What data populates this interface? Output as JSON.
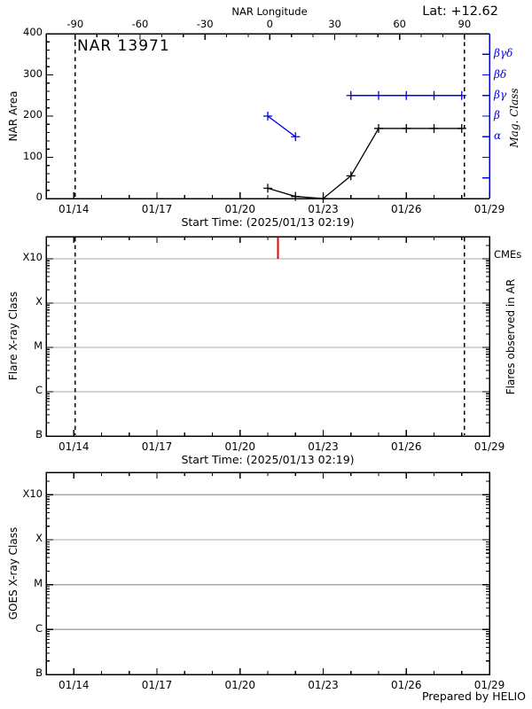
{
  "header": {
    "latitude_label": "Lat: +12.62"
  },
  "footer": {
    "credit": "Prepared by HELIO"
  },
  "colors": {
    "axis": "#000000",
    "mag_class": "#0000dd",
    "cme": "#ee0000",
    "grid_line": "#a8a8a8"
  },
  "chart_data": [
    {
      "type": "line",
      "panel": "nar-area",
      "title": "NAR 13971",
      "xlabel": "Start Time: (2025/01/13 02:19)",
      "x_ticks": [
        {
          "day": 14,
          "label": "01/14"
        },
        {
          "day": 17,
          "label": "01/17"
        },
        {
          "day": 20,
          "label": "01/20"
        },
        {
          "day": 23,
          "label": "01/23"
        },
        {
          "day": 26,
          "label": "01/26"
        },
        {
          "day": 29,
          "label": "01/29"
        }
      ],
      "x_minor_step_days": 1,
      "ylabel": "NAR Area",
      "ylim": [
        0,
        400
      ],
      "y_major_ticks": [
        0,
        100,
        200,
        300,
        400
      ],
      "y_minor_step": 20,
      "top_axis": {
        "label": "NAR Longitude",
        "ticks_deg": [
          -90,
          -60,
          -30,
          0,
          30,
          60,
          90
        ],
        "minor_step_deg": 10,
        "deg_minus90_day": 14.05,
        "deg_plus90_day": 28.1
      },
      "right_axis": {
        "label": "Mag. Class",
        "ticks": [
          {
            "label": "βγδ",
            "area": 350
          },
          {
            "label": "βδ",
            "area": 300
          },
          {
            "label": "βγ",
            "area": 250
          },
          {
            "label": "β",
            "area": 200
          },
          {
            "label": "α",
            "area": 150
          },
          {
            "label": "",
            "area": 100
          },
          {
            "label": "",
            "area": 50
          }
        ]
      },
      "limb_crossing_days": [
        14.05,
        28.1
      ],
      "area_series": {
        "name": "NAR area",
        "points": [
          [
            21,
            25
          ],
          [
            22,
            5
          ],
          [
            23,
            0
          ],
          [
            24,
            55
          ],
          [
            25,
            170
          ],
          [
            26,
            170
          ],
          [
            27,
            170
          ],
          [
            28,
            170
          ]
        ]
      },
      "mag_series": {
        "name": "Magnetic class",
        "segments": [
          [
            [
              21,
              "β"
            ],
            [
              22,
              "α"
            ]
          ],
          [
            [
              24,
              "βγ"
            ],
            [
              25,
              "βγ"
            ],
            [
              26,
              "βγ"
            ],
            [
              27,
              "βγ"
            ],
            [
              28,
              "βγ"
            ]
          ]
        ]
      }
    },
    {
      "type": "scatter",
      "panel": "flare-xray",
      "xlabel": "Start Time: (2025/01/13 02:19)",
      "x_ticks": [
        {
          "day": 14,
          "label": "01/14"
        },
        {
          "day": 17,
          "label": "01/17"
        },
        {
          "day": 20,
          "label": "01/20"
        },
        {
          "day": 23,
          "label": "01/23"
        },
        {
          "day": 26,
          "label": "01/26"
        },
        {
          "day": 29,
          "label": "01/29"
        }
      ],
      "x_minor_step_days": 1,
      "ylabel": "Flare X-ray Class",
      "ylim_log": [
        -7,
        -2.5
      ],
      "y_ticks": [
        {
          "label": "B",
          "log": -7
        },
        {
          "label": "C",
          "log": -6
        },
        {
          "label": "M",
          "log": -5
        },
        {
          "label": "X",
          "log": -4
        },
        {
          "label": "X10",
          "log": -3
        }
      ],
      "grid_levels_log": [
        -6,
        -5,
        -4,
        -3
      ],
      "right_label": "Flares observed in AR",
      "cme_label": "CMEs",
      "cme_event_days": [
        21.37
      ],
      "limb_crossing_days": [
        14.05,
        28.1
      ],
      "flares": []
    },
    {
      "type": "scatter",
      "panel": "goes-xray",
      "x_ticks": [
        {
          "day": 14,
          "label": "01/14"
        },
        {
          "day": 17,
          "label": "01/17"
        },
        {
          "day": 20,
          "label": "01/20"
        },
        {
          "day": 23,
          "label": "01/23"
        },
        {
          "day": 26,
          "label": "01/26"
        },
        {
          "day": 29,
          "label": "01/29"
        }
      ],
      "x_minor_step_days": 1,
      "ylabel": "GOES X-ray Class",
      "ylim_log": [
        -7,
        -2.5
      ],
      "y_ticks": [
        {
          "label": "B",
          "log": -7
        },
        {
          "label": "C",
          "log": -6
        },
        {
          "label": "M",
          "log": -5
        },
        {
          "label": "X",
          "log": -4
        },
        {
          "label": "X10",
          "log": -3
        }
      ],
      "grid_levels_log": [
        -6,
        -5,
        -4,
        -3
      ],
      "points": []
    }
  ]
}
